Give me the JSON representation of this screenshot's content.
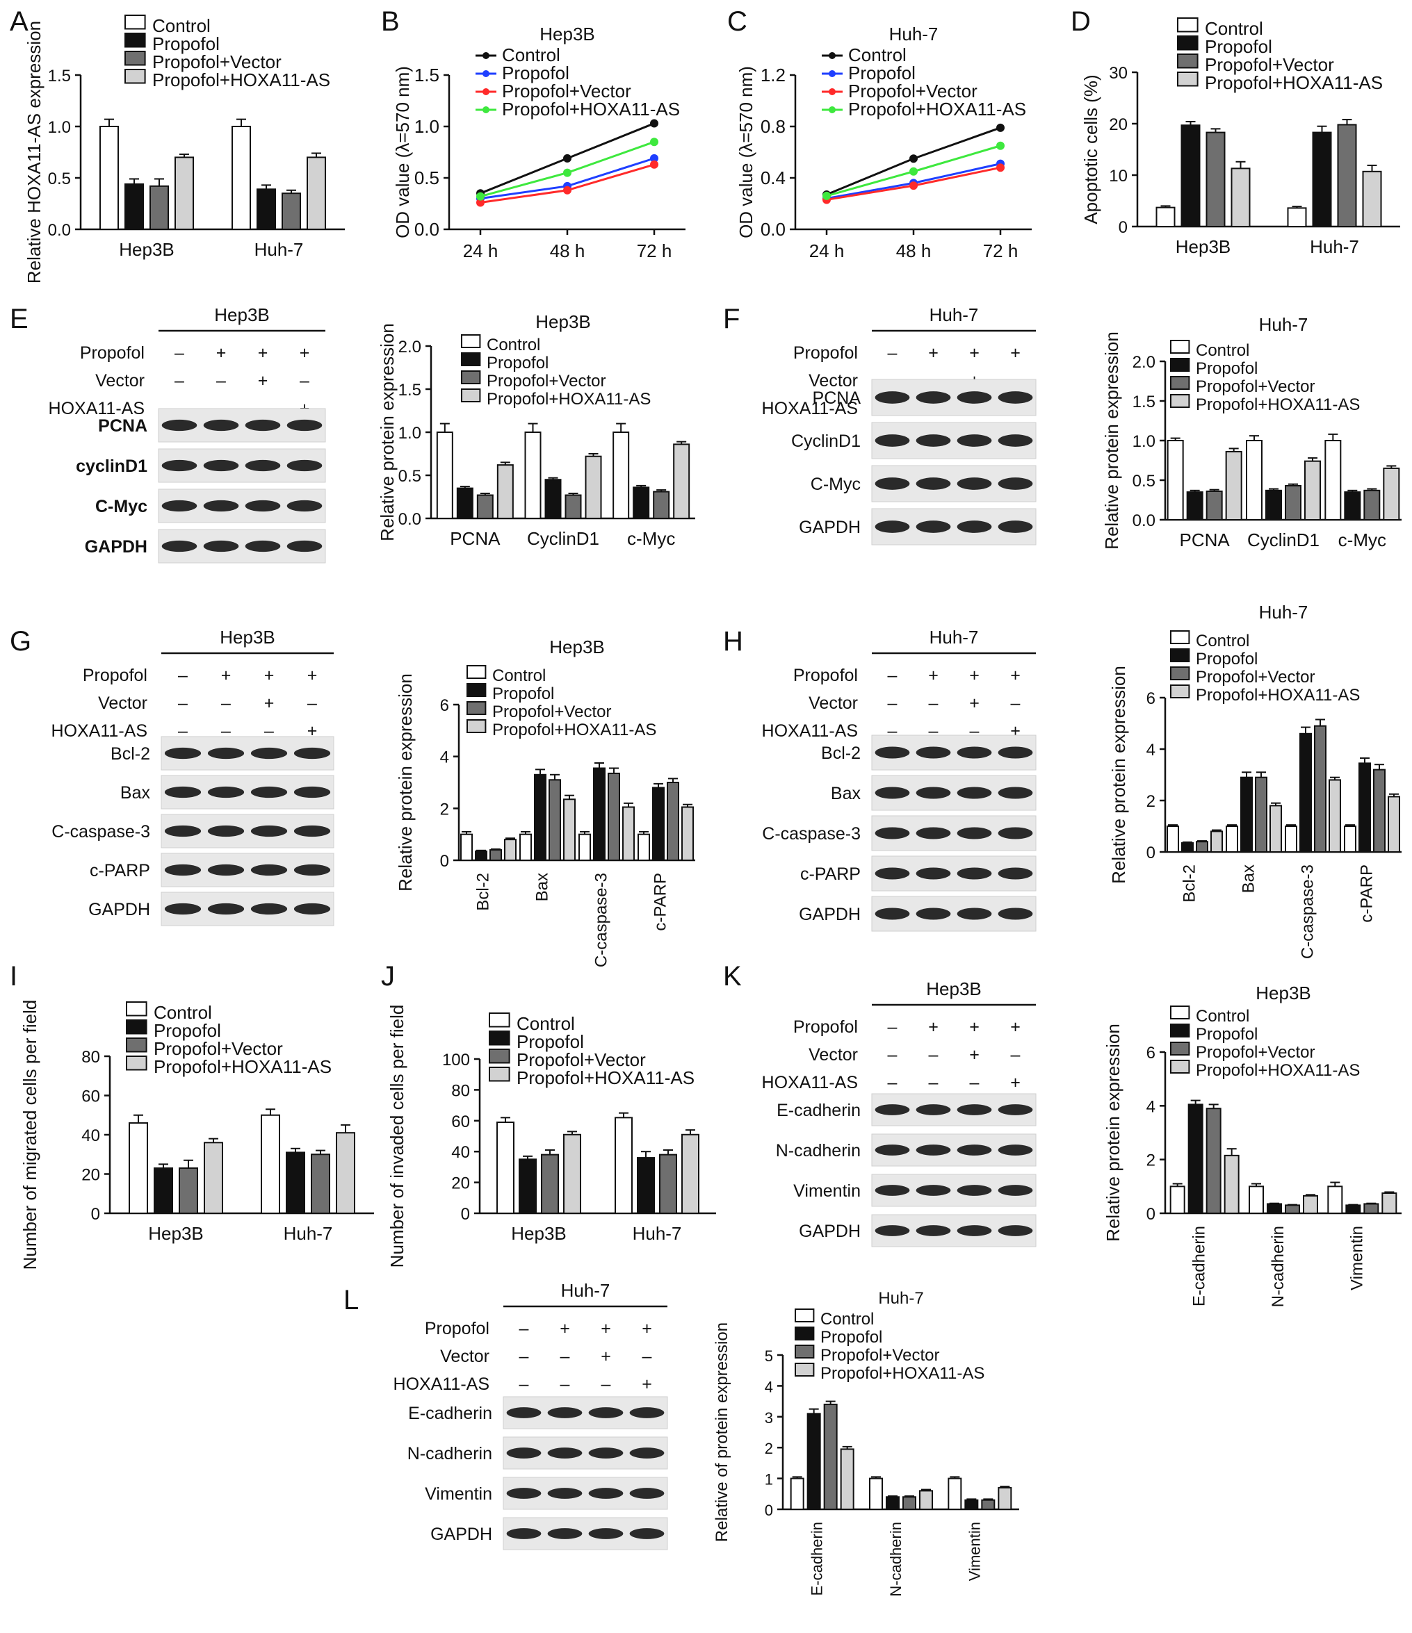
{
  "colors": {
    "control": "#ffffff",
    "propofol": "#111111",
    "vector": "#6f6f6f",
    "hoxa": "#d2d2d2",
    "line_control": "#111111",
    "line_propofol": "#1f3fff",
    "line_vector": "#ff2a2a",
    "line_hoxa": "#3ee83e"
  },
  "legend_labels": [
    "Control",
    "Propofol",
    "Propofol+Vector",
    "Propofol+HOXA11-AS"
  ],
  "western_common": {
    "propofol_label": "Propofol",
    "vector_label": "Vector",
    "hoxa_label": "HOXA11-AS",
    "propofol_signs": [
      "–",
      "+",
      "+",
      "+"
    ],
    "vector_signs": [
      "–",
      "–",
      "+",
      "–"
    ],
    "hoxa_signs": [
      "–",
      "–",
      "–",
      "+"
    ]
  },
  "chart_data": [
    {
      "panel": "A",
      "type": "bar",
      "title": "",
      "ylabel": "Relative HOXA11-AS expression",
      "categories": [
        "Hep3B",
        "Huh-7"
      ],
      "ylim": [
        0,
        1.5
      ],
      "yticks": [
        "0.0",
        "0.5",
        "1.0",
        "1.5"
      ],
      "series": [
        {
          "name": "Control",
          "values": [
            1.0,
            1.0
          ],
          "errors": [
            0.07,
            0.07
          ]
        },
        {
          "name": "Propofol",
          "values": [
            0.44,
            0.39
          ],
          "errors": [
            0.05,
            0.04
          ]
        },
        {
          "name": "Propofol+Vector",
          "values": [
            0.42,
            0.35
          ],
          "errors": [
            0.07,
            0.03
          ]
        },
        {
          "name": "Propofol+HOXA11-AS",
          "values": [
            0.7,
            0.7
          ],
          "errors": [
            0.03,
            0.04
          ]
        }
      ]
    },
    {
      "panel": "B",
      "type": "line",
      "title": "Hep3B",
      "ylabel": "OD value (λ=570 nm)",
      "x": [
        "24 h",
        "48 h",
        "72 h"
      ],
      "ylim": [
        0,
        1.5
      ],
      "yticks": [
        "0.0",
        "0.5",
        "1.0",
        "1.5"
      ],
      "series": [
        {
          "name": "Control",
          "values": [
            0.35,
            0.69,
            1.03
          ]
        },
        {
          "name": "Propofol",
          "values": [
            0.3,
            0.42,
            0.69
          ]
        },
        {
          "name": "Propofol+Vector",
          "values": [
            0.26,
            0.38,
            0.63
          ]
        },
        {
          "name": "Propofol+HOXA11-AS",
          "values": [
            0.32,
            0.55,
            0.85
          ]
        }
      ]
    },
    {
      "panel": "C",
      "type": "line",
      "title": "Huh-7",
      "ylabel": "OD value (λ=570 nm)",
      "x": [
        "24 h",
        "48 h",
        "72 h"
      ],
      "ylim": [
        0,
        1.2
      ],
      "yticks": [
        "0.0",
        "0.4",
        "0.8",
        "1.2"
      ],
      "series": [
        {
          "name": "Control",
          "values": [
            0.27,
            0.55,
            0.79
          ]
        },
        {
          "name": "Propofol",
          "values": [
            0.24,
            0.36,
            0.51
          ]
        },
        {
          "name": "Propofol+Vector",
          "values": [
            0.23,
            0.34,
            0.48
          ]
        },
        {
          "name": "Propofol+HOXA11-AS",
          "values": [
            0.26,
            0.45,
            0.65
          ]
        }
      ]
    },
    {
      "panel": "D",
      "type": "bar",
      "title": "",
      "ylabel": "Apoptotic cells (%)",
      "categories": [
        "Hep3B",
        "Huh-7"
      ],
      "ylim": [
        0,
        30
      ],
      "yticks": [
        "0",
        "10",
        "20",
        "30"
      ],
      "series": [
        {
          "name": "Control",
          "values": [
            3.7,
            3.6
          ],
          "errors": [
            0.3,
            0.3
          ]
        },
        {
          "name": "Propofol",
          "values": [
            19.7,
            18.3
          ],
          "errors": [
            0.7,
            1.2
          ]
        },
        {
          "name": "Propofol+Vector",
          "values": [
            18.3,
            19.8
          ],
          "errors": [
            0.7,
            1.0
          ]
        },
        {
          "name": "Propofol+HOXA11-AS",
          "values": [
            11.3,
            10.7
          ],
          "errors": [
            1.3,
            1.2
          ]
        }
      ]
    },
    {
      "panel": "E",
      "type": "bar",
      "title": "Hep3B",
      "ylabel": "Relative protein expression",
      "categories": [
        "PCNA",
        "CyclinD1",
        "c-Myc"
      ],
      "ylim": [
        0,
        2.0
      ],
      "yticks": [
        "0.0",
        "0.5",
        "1.0",
        "1.5",
        "2.0"
      ],
      "series": [
        {
          "name": "Control",
          "values": [
            1.0,
            1.0,
            1.0
          ],
          "errors": [
            0.1,
            0.1,
            0.1
          ]
        },
        {
          "name": "Propofol",
          "values": [
            0.35,
            0.45,
            0.36
          ],
          "errors": [
            0.02,
            0.02,
            0.02
          ]
        },
        {
          "name": "Propofol+Vector",
          "values": [
            0.27,
            0.27,
            0.31
          ],
          "errors": [
            0.02,
            0.02,
            0.02
          ]
        },
        {
          "name": "Propofol+HOXA11-AS",
          "values": [
            0.62,
            0.72,
            0.86
          ],
          "errors": [
            0.03,
            0.03,
            0.03
          ]
        }
      ]
    },
    {
      "panel": "F",
      "type": "bar",
      "title": "Huh-7",
      "ylabel": "Relative protein expression",
      "categories": [
        "PCNA",
        "CyclinD1",
        "c-Myc"
      ],
      "ylim": [
        0,
        2.0
      ],
      "yticks": [
        "0.0",
        "0.5",
        "1.0",
        "1.5",
        "2.0"
      ],
      "series": [
        {
          "name": "Control",
          "values": [
            1.0,
            1.0,
            1.0
          ],
          "errors": [
            0.03,
            0.06,
            0.08
          ]
        },
        {
          "name": "Propofol",
          "values": [
            0.35,
            0.37,
            0.35
          ],
          "errors": [
            0.02,
            0.02,
            0.02
          ]
        },
        {
          "name": "Propofol+Vector",
          "values": [
            0.36,
            0.43,
            0.37
          ],
          "errors": [
            0.02,
            0.02,
            0.02
          ]
        },
        {
          "name": "Propofol+HOXA11-AS",
          "values": [
            0.86,
            0.74,
            0.65
          ],
          "errors": [
            0.04,
            0.04,
            0.03
          ]
        }
      ]
    },
    {
      "panel": "G",
      "type": "bar",
      "title": "Hep3B",
      "ylabel": "Relative protein expression",
      "categories": [
        "Bcl-2",
        "Bax",
        "C-caspase-3",
        "c-PARP"
      ],
      "ylim": [
        0,
        6
      ],
      "yticks": [
        "0",
        "2",
        "4",
        "6"
      ],
      "series": [
        {
          "name": "Control",
          "values": [
            1.0,
            1.0,
            1.0,
            1.0
          ],
          "errors": [
            0.1,
            0.1,
            0.1,
            0.1
          ]
        },
        {
          "name": "Propofol",
          "values": [
            0.35,
            3.3,
            3.55,
            2.8
          ],
          "errors": [
            0.03,
            0.2,
            0.2,
            0.15
          ]
        },
        {
          "name": "Propofol+Vector",
          "values": [
            0.4,
            3.1,
            3.35,
            3.0
          ],
          "errors": [
            0.03,
            0.2,
            0.2,
            0.15
          ]
        },
        {
          "name": "Propofol+HOXA11-AS",
          "values": [
            0.8,
            2.35,
            2.05,
            2.05
          ],
          "errors": [
            0.05,
            0.15,
            0.15,
            0.1
          ]
        }
      ]
    },
    {
      "panel": "H",
      "type": "bar",
      "title": "Huh-7",
      "ylabel": "Relative protein expression",
      "categories": [
        "Bcl-2",
        "Bax",
        "C-caspase-3",
        "c-PARP"
      ],
      "ylim": [
        0,
        6
      ],
      "yticks": [
        "0",
        "2",
        "4",
        "6"
      ],
      "series": [
        {
          "name": "Control",
          "values": [
            1.0,
            1.0,
            1.0,
            1.0
          ],
          "errors": [
            0.05,
            0.05,
            0.05,
            0.05
          ]
        },
        {
          "name": "Propofol",
          "values": [
            0.35,
            2.9,
            4.6,
            3.45
          ],
          "errors": [
            0.03,
            0.2,
            0.25,
            0.2
          ]
        },
        {
          "name": "Propofol+Vector",
          "values": [
            0.4,
            2.9,
            4.9,
            3.2
          ],
          "errors": [
            0.03,
            0.2,
            0.25,
            0.2
          ]
        },
        {
          "name": "Propofol+HOXA11-AS",
          "values": [
            0.8,
            1.8,
            2.8,
            2.15
          ],
          "errors": [
            0.05,
            0.1,
            0.1,
            0.1
          ]
        }
      ]
    },
    {
      "panel": "I",
      "type": "bar",
      "title": "",
      "ylabel": "Number of migrated cells per field",
      "categories": [
        "Hep3B",
        "Huh-7"
      ],
      "ylim": [
        0,
        80
      ],
      "yticks": [
        "0",
        "20",
        "40",
        "60",
        "80"
      ],
      "series": [
        {
          "name": "Control",
          "values": [
            46,
            50
          ],
          "errors": [
            4,
            3
          ]
        },
        {
          "name": "Propofol",
          "values": [
            23,
            31
          ],
          "errors": [
            2,
            2
          ]
        },
        {
          "name": "Propofol+Vector",
          "values": [
            23,
            30
          ],
          "errors": [
            4,
            2
          ]
        },
        {
          "name": "Propofol+HOXA11-AS",
          "values": [
            36,
            41
          ],
          "errors": [
            2,
            4
          ]
        }
      ]
    },
    {
      "panel": "J",
      "type": "bar",
      "title": "",
      "ylabel": "Number of invaded cells per field",
      "categories": [
        "Hep3B",
        "Huh-7"
      ],
      "ylim": [
        0,
        100
      ],
      "yticks": [
        "0",
        "20",
        "40",
        "60",
        "80",
        "100"
      ],
      "series": [
        {
          "name": "Control",
          "values": [
            59,
            62
          ],
          "errors": [
            3,
            3
          ]
        },
        {
          "name": "Propofol",
          "values": [
            35,
            36
          ],
          "errors": [
            2,
            4
          ]
        },
        {
          "name": "Propofol+Vector",
          "values": [
            38,
            38
          ],
          "errors": [
            3,
            3
          ]
        },
        {
          "name": "Propofol+HOXA11-AS",
          "values": [
            51,
            51
          ],
          "errors": [
            2,
            3
          ]
        }
      ]
    },
    {
      "panel": "K",
      "type": "bar",
      "title": "Hep3B",
      "ylabel": "Relative protein expression",
      "categories": [
        "E-cadherin",
        "N-cadherin",
        "Vimentin"
      ],
      "ylim": [
        0,
        6
      ],
      "yticks": [
        "0",
        "2",
        "4",
        "6"
      ],
      "series": [
        {
          "name": "Control",
          "values": [
            1.0,
            1.0,
            1.0
          ],
          "errors": [
            0.1,
            0.1,
            0.15
          ]
        },
        {
          "name": "Propofol",
          "values": [
            4.05,
            0.35,
            0.3
          ],
          "errors": [
            0.15,
            0.02,
            0.02
          ]
        },
        {
          "name": "Propofol+Vector",
          "values": [
            3.9,
            0.3,
            0.35
          ],
          "errors": [
            0.15,
            0.02,
            0.02
          ]
        },
        {
          "name": "Propofol+HOXA11-AS",
          "values": [
            2.15,
            0.65,
            0.75
          ],
          "errors": [
            0.25,
            0.04,
            0.04
          ]
        }
      ]
    },
    {
      "panel": "L",
      "type": "bar",
      "title": "Huh-7",
      "ylabel": "Relative of protein expression",
      "categories": [
        "E-cadherin",
        "N-cadherin",
        "Vimentin"
      ],
      "ylim": [
        0,
        5
      ],
      "yticks": [
        "0",
        "1",
        "2",
        "3",
        "4",
        "5"
      ],
      "series": [
        {
          "name": "Control",
          "values": [
            1.0,
            1.0,
            1.0
          ],
          "errors": [
            0.05,
            0.05,
            0.05
          ]
        },
        {
          "name": "Propofol",
          "values": [
            3.1,
            0.4,
            0.3
          ],
          "errors": [
            0.15,
            0.03,
            0.03
          ]
        },
        {
          "name": "Propofol+Vector",
          "values": [
            3.4,
            0.4,
            0.3
          ],
          "errors": [
            0.1,
            0.03,
            0.03
          ]
        },
        {
          "name": "Propofol+HOXA11-AS",
          "values": [
            1.95,
            0.6,
            0.7
          ],
          "errors": [
            0.08,
            0.04,
            0.04
          ]
        }
      ]
    }
  ],
  "westerns": [
    {
      "panel": "E",
      "cell": "Hep3B",
      "proteins": [
        "PCNA",
        "cyclinD1",
        "C-Myc",
        "GAPDH"
      ]
    },
    {
      "panel": "F",
      "cell": "Huh-7",
      "proteins": [
        "PCNA",
        "CyclinD1",
        "C-Myc",
        "GAPDH"
      ]
    },
    {
      "panel": "G",
      "cell": "Hep3B",
      "proteins": [
        "Bcl-2",
        "Bax",
        "C-caspase-3",
        "c-PARP",
        "GAPDH"
      ]
    },
    {
      "panel": "H",
      "cell": "Huh-7",
      "proteins": [
        "Bcl-2",
        "Bax",
        "C-caspase-3",
        "c-PARP",
        "GAPDH"
      ]
    },
    {
      "panel": "K",
      "cell": "Hep3B",
      "proteins": [
        "E-cadherin",
        "N-cadherin",
        "Vimentin",
        "GAPDH"
      ]
    },
    {
      "panel": "L",
      "cell": "Huh-7",
      "proteins": [
        "E-cadherin",
        "N-cadherin",
        "Vimentin",
        "GAPDH"
      ]
    }
  ]
}
